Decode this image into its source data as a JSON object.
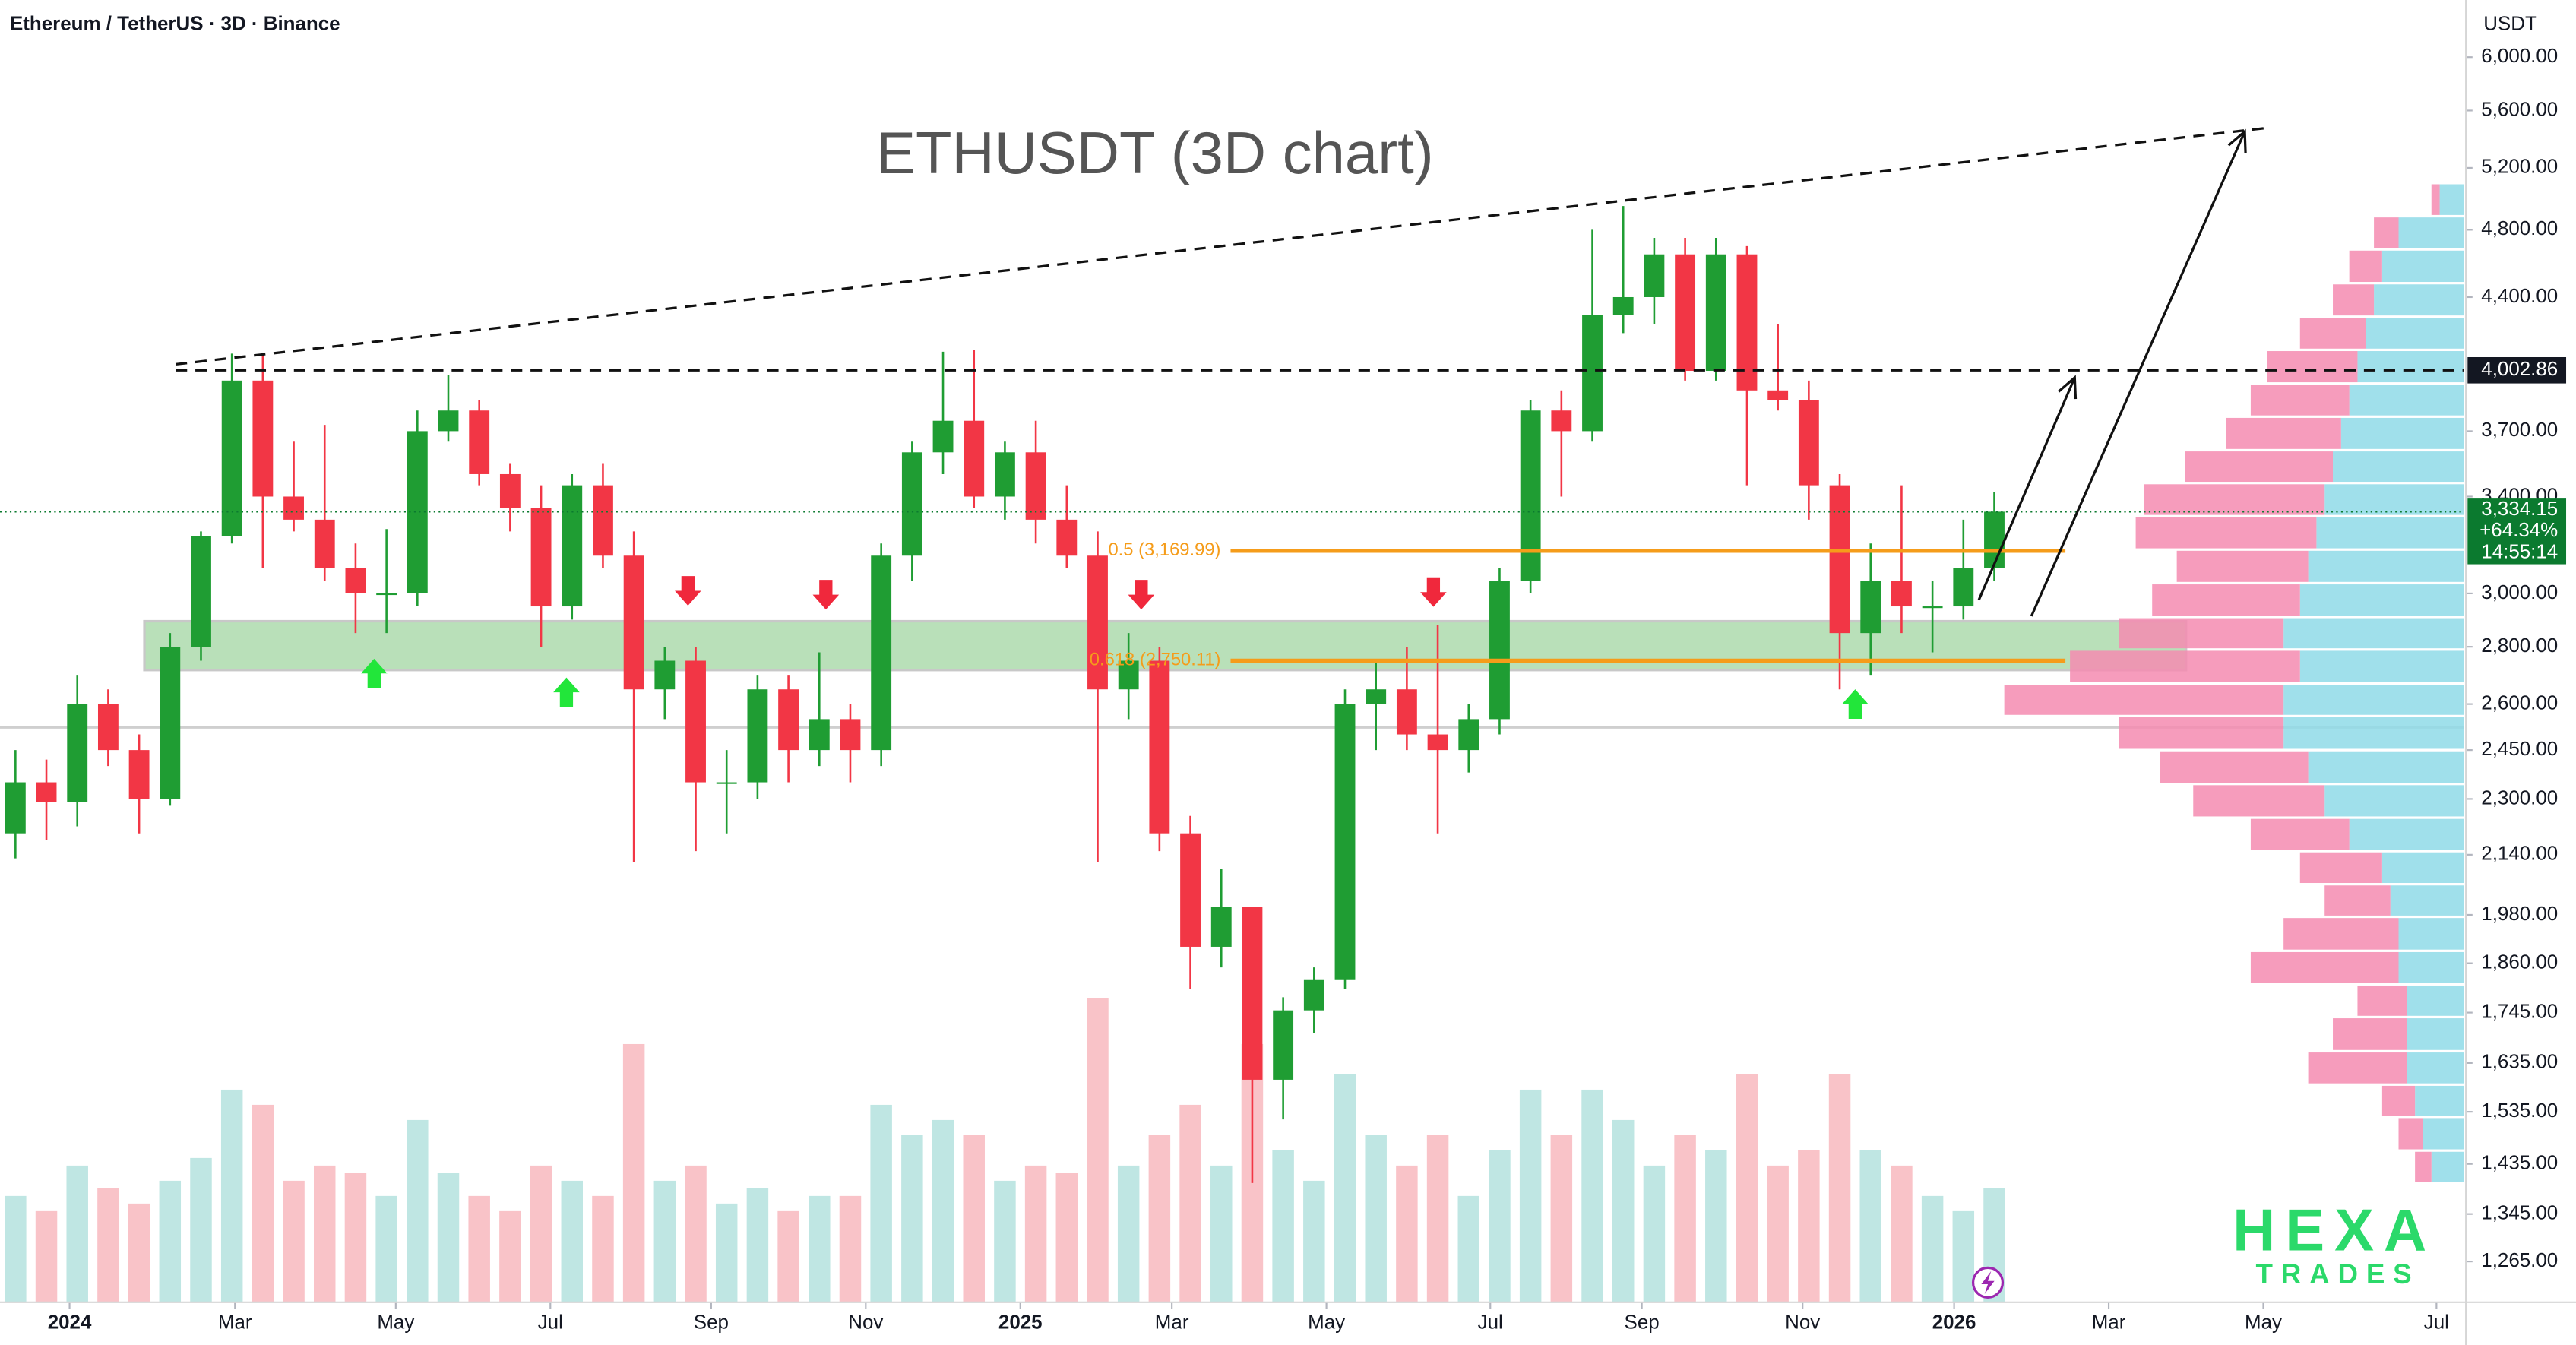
{
  "header": "Ethereum / TetherUS · 3D · Binance",
  "logo": {
    "line1": "HEXA",
    "line2": "TRADES",
    "color": "#2bd96a"
  },
  "chart_data": {
    "type": "candlestick",
    "title": "ETHUSDT (3D chart)",
    "y_unit": "USDT",
    "log_scale": true,
    "xlim": [
      0,
      79.7
    ],
    "xticks": [
      {
        "value": 2.25,
        "label": "2024"
      },
      {
        "value": 7.6,
        "label": "Mar"
      },
      {
        "value": 12.8,
        "label": "May"
      },
      {
        "value": 17.8,
        "label": "Jul"
      },
      {
        "value": 23.0,
        "label": "Sep"
      },
      {
        "value": 28.0,
        "label": "Nov"
      },
      {
        "value": 33.0,
        "label": "2025"
      },
      {
        "value": 37.9,
        "label": "Mar"
      },
      {
        "value": 42.9,
        "label": "May"
      },
      {
        "value": 48.2,
        "label": "Jul"
      },
      {
        "value": 53.1,
        "label": "Sep"
      },
      {
        "value": 58.3,
        "label": "Nov"
      },
      {
        "value": 63.2,
        "label": "2026"
      },
      {
        "value": 68.2,
        "label": "Mar"
      },
      {
        "value": 73.2,
        "label": "May"
      },
      {
        "value": 78.8,
        "label": "Jul"
      }
    ],
    "ylim": [
      1200,
      6460
    ],
    "yticks": [
      {
        "value": 6000,
        "label": "6,000.00"
      },
      {
        "value": 5600,
        "label": "5,600.00"
      },
      {
        "value": 5200,
        "label": "5,200.00"
      },
      {
        "value": 4800,
        "label": "4,800.00"
      },
      {
        "value": 4400,
        "label": "4,400.00"
      },
      {
        "value": 3700,
        "label": "3,700.00"
      },
      {
        "value": 3400,
        "label": "3,400.00"
      },
      {
        "value": 3000,
        "label": "3,000.00"
      },
      {
        "value": 2800,
        "label": "2,800.00"
      },
      {
        "value": 2600,
        "label": "2,600.00"
      },
      {
        "value": 2450,
        "label": "2,450.00"
      },
      {
        "value": 2300,
        "label": "2,300.00"
      },
      {
        "value": 2140,
        "label": "2,140.00"
      },
      {
        "value": 1980,
        "label": "1,980.00"
      },
      {
        "value": 1860,
        "label": "1,860.00"
      },
      {
        "value": 1745,
        "label": "1,745.00"
      },
      {
        "value": 1635,
        "label": "1,635.00"
      },
      {
        "value": 1535,
        "label": "1,535.00"
      },
      {
        "value": 1435,
        "label": "1,435.00"
      },
      {
        "value": 1345,
        "label": "1,345.00"
      },
      {
        "value": 1265,
        "label": "1,265.00"
      }
    ],
    "colors": {
      "up": "#1f9d33",
      "down": "#f23645",
      "volume_up": "#bfe6e3",
      "volume_down": "#f9c3c8"
    },
    "x": [
      0.5,
      1.5,
      2.5,
      3.5,
      4.5,
      5.5,
      6.5,
      7.5,
      8.5,
      9.5,
      10.5,
      11.5,
      12.5,
      13.5,
      14.5,
      15.5,
      16.5,
      17.5,
      18.5,
      19.5,
      20.5,
      21.5,
      22.5,
      23.5,
      24.5,
      25.5,
      26.5,
      27.5,
      28.5,
      29.5,
      30.5,
      31.5,
      32.5,
      33.5,
      34.5,
      35.5,
      36.5,
      37.5,
      38.5,
      39.5,
      40.5,
      41.5,
      42.5,
      43.5,
      44.5,
      45.5,
      46.5,
      47.5,
      48.5,
      49.5,
      50.5,
      51.5,
      52.5,
      53.5,
      54.5,
      55.5,
      56.5,
      57.5,
      58.5,
      59.5,
      60.5,
      61.5,
      62.5,
      63.5,
      64.5
    ],
    "open": [
      2200,
      2350,
      2290,
      2600,
      2450,
      2300,
      2800,
      3230,
      3950,
      3400,
      3300,
      3100,
      3000,
      3000,
      3700,
      3800,
      3500,
      3350,
      2950,
      3450,
      3150,
      2650,
      2750,
      2350,
      2350,
      2650,
      2450,
      2550,
      2450,
      3150,
      3600,
      3750,
      3400,
      3600,
      3300,
      3150,
      2650,
      2750,
      2200,
      1900,
      2000,
      1600,
      1750,
      1820,
      2600,
      2650,
      2500,
      2450,
      2550,
      3050,
      3800,
      3700,
      4300,
      4400,
      4650,
      4000,
      4650,
      3900,
      3850,
      3450,
      2850,
      3050,
      2950,
      2950,
      3100
    ],
    "high": [
      2450,
      2420,
      2700,
      2650,
      2500,
      2850,
      3250,
      4090,
      4090,
      3650,
      3730,
      3200,
      3260,
      3800,
      3980,
      3850,
      3550,
      3450,
      3500,
      3550,
      3250,
      2800,
      2800,
      2450,
      2700,
      2700,
      2780,
      2600,
      3200,
      3650,
      4100,
      4110,
      3650,
      3750,
      3450,
      3250,
      2850,
      2800,
      2250,
      2100,
      2000,
      1780,
      1850,
      2650,
      2750,
      2800,
      2880,
      2600,
      3100,
      3850,
      3900,
      4800,
      4950,
      4750,
      4750,
      4750,
      4700,
      4250,
      3950,
      3500,
      3200,
      3450,
      3050,
      3300,
      3420
    ],
    "low": [
      2130,
      2180,
      2220,
      2400,
      2200,
      2280,
      2750,
      3200,
      3100,
      3250,
      3050,
      2850,
      2850,
      2950,
      3650,
      3450,
      3250,
      2800,
      2900,
      3100,
      2120,
      2550,
      2150,
      2200,
      2300,
      2350,
      2400,
      2350,
      2400,
      3050,
      3500,
      3350,
      3300,
      3200,
      3100,
      2120,
      2550,
      2150,
      1800,
      1850,
      1400,
      1520,
      1700,
      1800,
      2450,
      2450,
      2200,
      2380,
      2500,
      3000,
      3400,
      3650,
      4200,
      4250,
      3950,
      3950,
      3450,
      3800,
      3300,
      2650,
      2700,
      2850,
      2780,
      2900,
      3050
    ],
    "close": [
      2350,
      2290,
      2600,
      2450,
      2300,
      2800,
      3230,
      3950,
      3400,
      3300,
      3100,
      3000,
      3000,
      3700,
      3800,
      3500,
      3350,
      2950,
      3450,
      3150,
      2650,
      2750,
      2350,
      2350,
      2650,
      2450,
      2550,
      2450,
      3150,
      3600,
      3750,
      3400,
      3600,
      3300,
      3150,
      2650,
      2750,
      2200,
      1900,
      2000,
      1600,
      1750,
      1820,
      2600,
      2650,
      2500,
      2450,
      2550,
      3050,
      3800,
      3700,
      4300,
      4400,
      4650,
      4000,
      4650,
      3900,
      3850,
      3450,
      2850,
      3050,
      2950,
      2950,
      3100,
      3334.15
    ],
    "volume": [
      70,
      60,
      90,
      75,
      65,
      80,
      95,
      140,
      130,
      80,
      90,
      85,
      70,
      120,
      85,
      70,
      60,
      90,
      80,
      70,
      170,
      80,
      90,
      65,
      75,
      60,
      70,
      70,
      130,
      110,
      120,
      110,
      80,
      90,
      85,
      200,
      90,
      110,
      130,
      90,
      170,
      100,
      80,
      150,
      110,
      90,
      110,
      70,
      100,
      140,
      110,
      140,
      120,
      90,
      110,
      100,
      150,
      90,
      100,
      150,
      100,
      90,
      70,
      60,
      75
    ],
    "last_price": {
      "value": 3334.15,
      "label": "3,334.15",
      "change": {
        "value": 64.34,
        "label": "+64.34%"
      },
      "countdown": "14:55:14",
      "color": "#0b7a2f"
    },
    "resistance": {
      "value": 4002.86,
      "label": "4,002.86",
      "x_start": 5.68
    },
    "trendline": {
      "x": [
        5.68,
        73.3
      ],
      "y": [
        4034,
        5475
      ]
    },
    "fib_levels": [
      {
        "value": 3169.99,
        "label": "0.5 (3,169.99)"
      },
      {
        "value": 2750.11,
        "label": "0.618 (2,750.11)"
      }
    ],
    "fib_x": [
      39.8,
      66.8
    ],
    "fib_color": "#f59c1a",
    "support_zone": {
      "x": [
        4.67,
        70.7
      ],
      "y": [
        2717,
        2894
      ],
      "color": "#a8d8a8"
    },
    "reference_line": 2523,
    "projections": [
      {
        "x": [
          64.0,
          67.1
        ],
        "y": [
          2975,
          3965
        ]
      },
      {
        "x": [
          65.7,
          72.6
        ],
        "y": [
          2913,
          5450
        ]
      }
    ],
    "sell_signals": {
      "x": [
        22.25,
        26.71,
        36.91,
        46.36
      ],
      "y": [
        3010,
        2995,
        2995,
        3005
      ],
      "color": "#f0283c"
    },
    "buy_signals": {
      "x": [
        12.1,
        18.32,
        60.0
      ],
      "y": [
        2705,
        2640,
        2600
      ],
      "color": "#22e63a"
    },
    "volume_profile": {
      "prices": [
        1400,
        1460,
        1525,
        1590,
        1660,
        1735,
        1810,
        1890,
        1975,
        2060,
        2150,
        2245,
        2345,
        2450,
        2560,
        2670,
        2790,
        2910,
        3040,
        3175,
        3315,
        3460,
        3610,
        3770,
        3935,
        4110,
        4290,
        4480,
        4680,
        4885
      ],
      "up": [
        20,
        25,
        30,
        35,
        35,
        35,
        40,
        40,
        45,
        50,
        70,
        85,
        95,
        110,
        110,
        100,
        110,
        100,
        95,
        90,
        85,
        80,
        75,
        70,
        65,
        60,
        55,
        50,
        40,
        15
      ],
      "down": [
        10,
        15,
        20,
        60,
        45,
        30,
        90,
        70,
        40,
        50,
        60,
        80,
        90,
        100,
        170,
        140,
        100,
        90,
        80,
        110,
        110,
        90,
        70,
        60,
        55,
        40,
        25,
        20,
        15,
        5
      ],
      "colors": {
        "up": "#8fdbe8",
        "down": "#f58bb0"
      }
    }
  }
}
